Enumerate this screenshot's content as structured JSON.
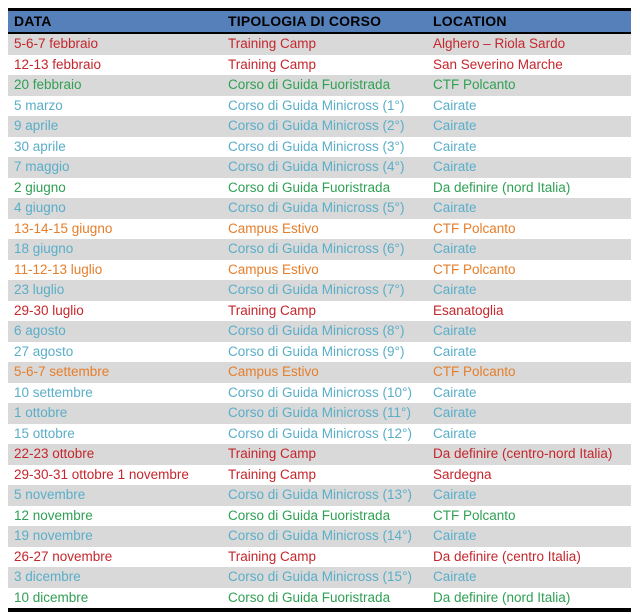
{
  "table": {
    "columns": [
      {
        "label": "DATA"
      },
      {
        "label": "TIPOLOGIA DI CORSO"
      },
      {
        "label": "LOCATION"
      }
    ],
    "rows": [
      {
        "data": "5-6-7 febbraio",
        "tipologia": "Training Camp",
        "location": "Alghero – Riola Sardo",
        "category": "training_camp"
      },
      {
        "data": "12-13 febbraio",
        "tipologia": "Training Camp",
        "location": "San Severino Marche",
        "category": "training_camp"
      },
      {
        "data": "20 febbraio",
        "tipologia": "Corso di Guida Fuoristrada",
        "location": "CTF Polcanto",
        "category": "fuoristrada"
      },
      {
        "data": "5 marzo",
        "tipologia": "Corso di Guida Minicross (1°)",
        "location": "Cairate",
        "category": "minicross"
      },
      {
        "data": "9 aprile",
        "tipologia": "Corso di Guida Minicross (2°)",
        "location": "Cairate",
        "category": "minicross"
      },
      {
        "data": "30 aprile",
        "tipologia": "Corso di Guida Minicross (3°)",
        "location": "Cairate",
        "category": "minicross"
      },
      {
        "data": "7 maggio",
        "tipologia": "Corso di Guida Minicross (4°)",
        "location": "Cairate",
        "category": "minicross"
      },
      {
        "data": "2 giugno",
        "tipologia": "Corso di Guida Fuoristrada",
        "location": "Da definire (nord Italia)",
        "category": "fuoristrada"
      },
      {
        "data": "4 giugno",
        "tipologia": "Corso di Guida Minicross (5°)",
        "location": "Cairate",
        "category": "minicross"
      },
      {
        "data": "13-14-15 giugno",
        "tipologia": "Campus Estivo",
        "location": "CTF Polcanto",
        "category": "campus_estivo"
      },
      {
        "data": "18 giugno",
        "tipologia": "Corso di Guida Minicross (6°)",
        "location": "Cairate",
        "category": "minicross"
      },
      {
        "data": "11-12-13 luglio",
        "tipologia": "Campus Estivo",
        "location": "CTF Polcanto",
        "category": "campus_estivo"
      },
      {
        "data": "23 luglio",
        "tipologia": "Corso di Guida Minicross (7°)",
        "location": "Cairate",
        "category": "minicross"
      },
      {
        "data": "29-30 luglio",
        "tipologia": "Training Camp",
        "location": "Esanatoglia",
        "category": "training_camp"
      },
      {
        "data": "6 agosto",
        "tipologia": "Corso di Guida Minicross (8°)",
        "location": "Cairate",
        "category": "minicross"
      },
      {
        "data": "27 agosto",
        "tipologia": "Corso di Guida Minicross (9°)",
        "location": "Cairate",
        "category": "minicross"
      },
      {
        "data": "5-6-7 settembre",
        "tipologia": "Campus Estivo",
        "location": "CTF Polcanto",
        "category": "campus_estivo"
      },
      {
        "data": "10 settembre",
        "tipologia": "Corso di Guida Minicross (10°)",
        "location": "Cairate",
        "category": "minicross"
      },
      {
        "data": "1 ottobre",
        "tipologia": "Corso di Guida Minicross (11°)",
        "location": "Cairate",
        "category": "minicross"
      },
      {
        "data": "15 ottobre",
        "tipologia": "Corso di Guida Minicross (12°)",
        "location": "Cairate",
        "category": "minicross"
      },
      {
        "data": "22-23 ottobre",
        "tipologia": "Training Camp",
        "location": "Da definire (centro-nord Italia)",
        "category": "training_camp"
      },
      {
        "data": "29-30-31 ottobre 1 novembre",
        "tipologia": "Training Camp",
        "location": "Sardegna",
        "category": "training_camp"
      },
      {
        "data": "5 novembre",
        "tipologia": "Corso di Guida Minicross (13°)",
        "location": "Cairate",
        "category": "minicross"
      },
      {
        "data": "12 novembre",
        "tipologia": "Corso di Guida Fuoristrada",
        "location": "CTF Polcanto",
        "category": "fuoristrada"
      },
      {
        "data": "19 novembre",
        "tipologia": "Corso di Guida Minicross (14°)",
        "location": "Cairate",
        "category": "minicross"
      },
      {
        "data": "26-27 novembre",
        "tipologia": "Training Camp",
        "location": "Da definire (centro Italia)",
        "category": "training_camp"
      },
      {
        "data": "3 dicembre",
        "tipologia": "Corso di Guida Minicross (15°)",
        "location": "Cairate",
        "category": "minicross"
      },
      {
        "data": "10 dicembre",
        "tipologia": "Corso di Guida Fuoristrada",
        "location": "Da definire (nord Italia)",
        "category": "fuoristrada"
      }
    ]
  },
  "colors": {
    "header_bg": "#5580BA",
    "header_text": "#000000",
    "row_alt_bg": "#D9D9D9",
    "border": "#000000",
    "training_camp": "#C5262C",
    "fuoristrada": "#2FA054",
    "minicross": "#5AAEC8",
    "campus_estivo": "#E67E2A"
  }
}
